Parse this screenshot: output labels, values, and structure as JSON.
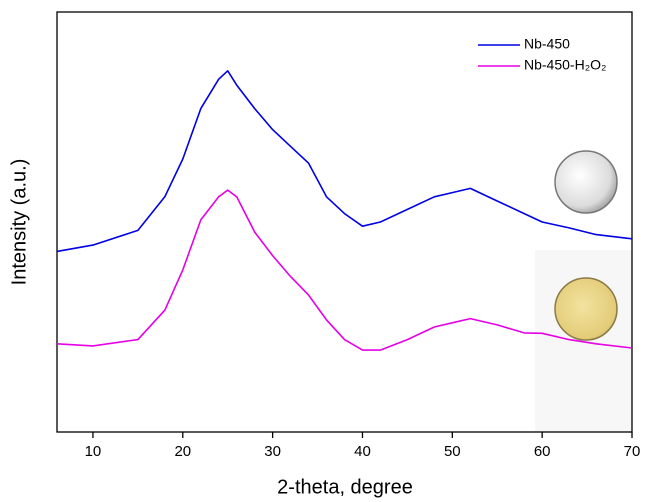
{
  "chart_data": {
    "type": "line",
    "xlabel": "2-theta, degree",
    "ylabel": "Intensity (a.u.)",
    "x": [
      6,
      10,
      15,
      18,
      20,
      22,
      24,
      25,
      26,
      28,
      30,
      32,
      34,
      36,
      38,
      40,
      42,
      45,
      48,
      50,
      52,
      55,
      58,
      60,
      63,
      66,
      70
    ],
    "series": [
      {
        "name": "Nb-450",
        "color": "#0000e6",
        "values": [
          43,
          44.5,
          48,
          56,
          65,
          77,
          84,
          86,
          82.6,
          77,
          72,
          68,
          64,
          56,
          52,
          49,
          50,
          53,
          56,
          57,
          58,
          55,
          52,
          50,
          48.6,
          47,
          46
        ]
      },
      {
        "name": "Nb-450-H₂O₂",
        "color": "#e600e6",
        "values": [
          21,
          20.5,
          22,
          29,
          38.6,
          50.5,
          56,
          57.6,
          56,
          47.6,
          42,
          37,
          32.6,
          26.7,
          22,
          19.5,
          19.5,
          22,
          25,
          26,
          27,
          25.5,
          23.6,
          23.5,
          22,
          21,
          20
        ]
      }
    ],
    "xlim": [
      6,
      70
    ],
    "xticks": [
      10,
      20,
      30,
      40,
      50,
      60,
      70
    ],
    "ylim": [
      0,
      100
    ],
    "legend": "upper right"
  }
}
